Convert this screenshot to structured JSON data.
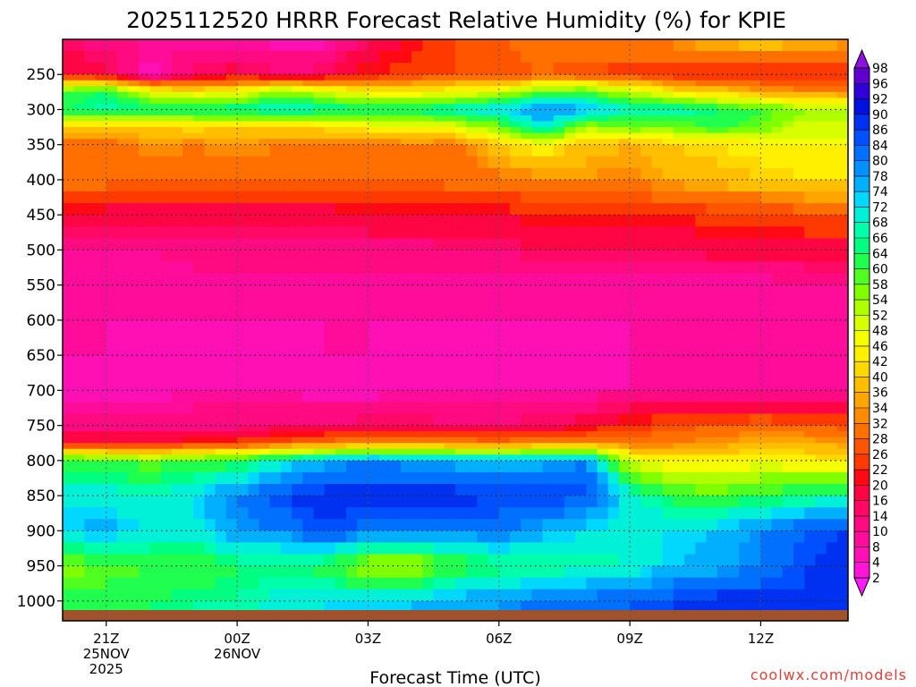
{
  "chart_data": {
    "type": "heatmap",
    "title": "2025112520 HRRR Forecast Relative Humidity (%) for KPIE",
    "xlabel": "Forecast Time (UTC)",
    "ylabel": "",
    "credit": "coolwx.com/models",
    "x_hours": [
      -1,
      0,
      1,
      2,
      3,
      4,
      5,
      6,
      7,
      8,
      9,
      10,
      11,
      12,
      13,
      14,
      15,
      16,
      17,
      18
    ],
    "x_ticks": [
      {
        "hour": 0,
        "label": "21Z",
        "sub1": "25NOV",
        "sub2": "2025"
      },
      {
        "hour": 3,
        "label": "00Z",
        "sub1": "26NOV",
        "sub2": ""
      },
      {
        "hour": 6,
        "label": "03Z",
        "sub1": "",
        "sub2": ""
      },
      {
        "hour": 9,
        "label": "06Z",
        "sub1": "",
        "sub2": ""
      },
      {
        "hour": 12,
        "label": "09Z",
        "sub1": "",
        "sub2": ""
      },
      {
        "hour": 15,
        "label": "12Z",
        "sub1": "",
        "sub2": ""
      }
    ],
    "xlim": [
      -1,
      17
    ],
    "y_levels": [
      200,
      250,
      275,
      300,
      325,
      350,
      400,
      450,
      500,
      550,
      600,
      650,
      700,
      750,
      775,
      800,
      850,
      900,
      950,
      1000,
      1013
    ],
    "y_ticks": [
      250,
      300,
      350,
      400,
      450,
      500,
      550,
      600,
      650,
      700,
      750,
      800,
      850,
      900,
      950,
      1000
    ],
    "y_tick_labels": [
      "250",
      "300",
      "350",
      "400",
      "450",
      "500",
      "550",
      "600",
      "650",
      "700",
      "750",
      "800",
      "850",
      "900",
      "950",
      "1000"
    ],
    "ylim": [
      200,
      1013
    ],
    "rh_values": [
      [
        14,
        12,
        10,
        8,
        8,
        6,
        6,
        16,
        20,
        26,
        28,
        30,
        30,
        32,
        34,
        38,
        40,
        38,
        36,
        36
      ],
      [
        20,
        18,
        6,
        16,
        18,
        14,
        16,
        22,
        24,
        26,
        26,
        28,
        26,
        24,
        22,
        22,
        20,
        20,
        22,
        22
      ],
      [
        60,
        64,
        48,
        44,
        46,
        56,
        50,
        44,
        44,
        46,
        50,
        58,
        60,
        52,
        44,
        40,
        36,
        34,
        32,
        32
      ],
      [
        64,
        68,
        66,
        66,
        68,
        70,
        68,
        66,
        66,
        70,
        72,
        80,
        76,
        68,
        70,
        64,
        60,
        54,
        54,
        54
      ],
      [
        40,
        38,
        40,
        42,
        40,
        40,
        42,
        44,
        48,
        48,
        56,
        72,
        54,
        58,
        56,
        62,
        58,
        50,
        50,
        50
      ],
      [
        30,
        30,
        34,
        32,
        34,
        32,
        30,
        30,
        32,
        30,
        40,
        46,
        38,
        36,
        40,
        42,
        44,
        46,
        46,
        46
      ],
      [
        30,
        30,
        28,
        30,
        28,
        30,
        28,
        28,
        28,
        30,
        30,
        32,
        34,
        32,
        36,
        38,
        40,
        42,
        42,
        42
      ],
      [
        18,
        18,
        18,
        18,
        18,
        18,
        18,
        20,
        20,
        20,
        20,
        22,
        22,
        22,
        22,
        24,
        24,
        26,
        26,
        26
      ],
      [
        10,
        10,
        10,
        12,
        12,
        12,
        12,
        12,
        12,
        14,
        14,
        16,
        16,
        16,
        16,
        18,
        18,
        18,
        18,
        18
      ],
      [
        8,
        8,
        8,
        8,
        8,
        8,
        8,
        8,
        8,
        8,
        8,
        8,
        8,
        8,
        8,
        8,
        8,
        10,
        10,
        10
      ],
      [
        8,
        8,
        8,
        8,
        8,
        8,
        8,
        8,
        8,
        8,
        8,
        8,
        8,
        8,
        8,
        8,
        8,
        8,
        8,
        8
      ],
      [
        8,
        8,
        6,
        6,
        6,
        6,
        8,
        8,
        6,
        6,
        6,
        6,
        6,
        8,
        8,
        8,
        8,
        8,
        8,
        8
      ],
      [
        6,
        4,
        6,
        8,
        8,
        8,
        6,
        6,
        8,
        8,
        8,
        8,
        8,
        8,
        8,
        8,
        8,
        8,
        8,
        8
      ],
      [
        12,
        12,
        12,
        12,
        12,
        14,
        14,
        16,
        16,
        14,
        14,
        16,
        18,
        24,
        26,
        28,
        30,
        28,
        26,
        26
      ],
      [
        20,
        20,
        20,
        22,
        24,
        28,
        30,
        34,
        34,
        32,
        30,
        34,
        34,
        30,
        32,
        34,
        36,
        36,
        34,
        34
      ],
      [
        62,
        60,
        58,
        60,
        62,
        70,
        76,
        80,
        78,
        76,
        76,
        76,
        80,
        50,
        44,
        44,
        46,
        44,
        42,
        42
      ],
      [
        70,
        70,
        68,
        72,
        80,
        86,
        88,
        88,
        88,
        88,
        86,
        86,
        86,
        70,
        62,
        60,
        62,
        64,
        68,
        68
      ],
      [
        74,
        76,
        72,
        70,
        78,
        80,
        86,
        82,
        80,
        80,
        82,
        76,
        72,
        70,
        72,
        74,
        80,
        84,
        86,
        86
      ],
      [
        56,
        58,
        60,
        60,
        64,
        64,
        62,
        52,
        52,
        60,
        64,
        64,
        66,
        68,
        74,
        76,
        80,
        86,
        88,
        88
      ],
      [
        62,
        62,
        64,
        66,
        66,
        70,
        72,
        72,
        74,
        76,
        78,
        82,
        82,
        84,
        86,
        88,
        88,
        86,
        86,
        86
      ],
      [
        62,
        62,
        64,
        66,
        66,
        70,
        72,
        72,
        74,
        76,
        78,
        82,
        82,
        84,
        86,
        88,
        88,
        86,
        86,
        86
      ]
    ],
    "colorbar_levels": [
      2,
      4,
      8,
      10,
      14,
      16,
      20,
      22,
      26,
      28,
      32,
      34,
      36,
      40,
      42,
      46,
      48,
      52,
      54,
      58,
      60,
      64,
      66,
      68,
      72,
      74,
      78,
      80,
      84,
      86,
      90,
      92,
      96,
      98
    ],
    "colorbar_colors": [
      "#ff19ff",
      "#ff14d8",
      "#ff10b4",
      "#ff0d9a",
      "#ff0a80",
      "#ff0866",
      "#ff0544",
      "#ff0a14",
      "#ff3a00",
      "#ff5500",
      "#ff7000",
      "#ff8c00",
      "#ffa500",
      "#ffbe00",
      "#ffd800",
      "#fff000",
      "#f5ff00",
      "#d8ff00",
      "#b0ff00",
      "#80ff00",
      "#50ff20",
      "#20ff50",
      "#00ff80",
      "#00ffaa",
      "#00f0d8",
      "#00d8ff",
      "#00b0ff",
      "#0090ff",
      "#0070ff",
      "#0050ff",
      "#0030f0",
      "#0010e0",
      "#3000d8",
      "#6000d0",
      "#9010e0"
    ],
    "ground_color": "#a0522d"
  }
}
